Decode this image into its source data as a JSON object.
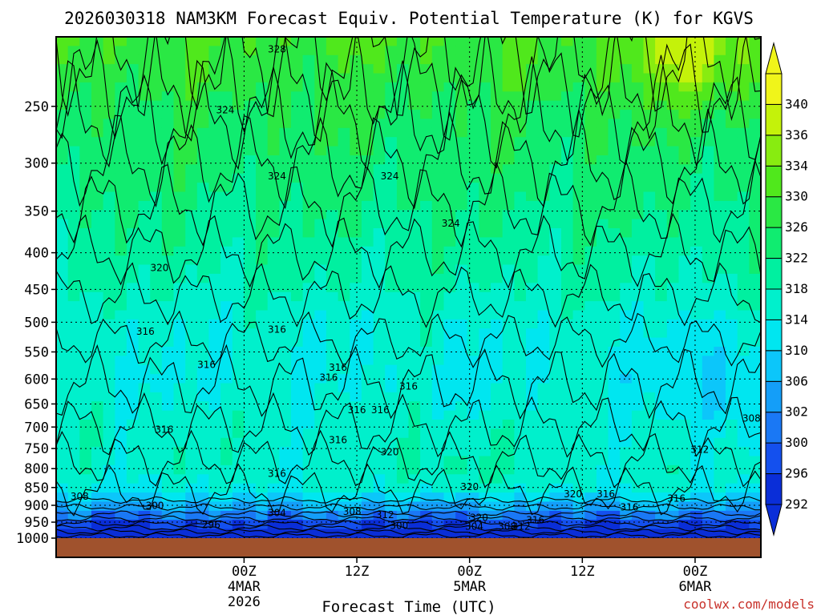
{
  "chart_data": {
    "type": "heatmap",
    "title": "2026030318 NAM3KM Forecast Equiv. Potential Temperature (K) for KGVS",
    "xlabel": "Forecast Time (UTC)",
    "credit": "coolwx.com/models",
    "y_axis": {
      "quantity": "pressure (hPa)",
      "range": [
        1000,
        200
      ],
      "ticks": [
        250,
        300,
        350,
        400,
        450,
        500,
        550,
        600,
        650,
        700,
        750,
        800,
        850,
        900,
        950,
        1000
      ]
    },
    "x_axis": {
      "range_hours_from_init": [
        -14,
        61
      ],
      "ticks": [
        {
          "hour": 6,
          "lines": [
            "00Z",
            "4MAR",
            "2026"
          ]
        },
        {
          "hour": 18,
          "lines": [
            "12Z"
          ]
        },
        {
          "hour": 30,
          "lines": [
            "00Z",
            "5MAR"
          ]
        },
        {
          "hour": 42,
          "lines": [
            "12Z"
          ]
        },
        {
          "hour": 54,
          "lines": [
            "00Z",
            "6MAR"
          ]
        }
      ]
    },
    "grid": true,
    "colorbar": {
      "unit": "K",
      "levels": [
        292,
        296,
        300,
        302,
        306,
        310,
        314,
        318,
        322,
        326,
        330,
        334,
        336,
        340
      ],
      "colors": [
        "#0a2ed8",
        "#1450ee",
        "#1a78f5",
        "#149ef8",
        "#0cc6fa",
        "#00e6f0",
        "#00f0cc",
        "#00f0a0",
        "#10ec70",
        "#2ae844",
        "#50e81c",
        "#88ec10",
        "#c4f20a",
        "#f0f51a"
      ]
    },
    "field_summary": [
      {
        "pressure": 200,
        "theta_e": 330
      },
      {
        "pressure": 250,
        "theta_e": 326
      },
      {
        "pressure": 300,
        "theta_e": 324
      },
      {
        "pressure": 350,
        "theta_e": 322
      },
      {
        "pressure": 400,
        "theta_e": 320
      },
      {
        "pressure": 450,
        "theta_e": 318
      },
      {
        "pressure": 500,
        "theta_e": 315
      },
      {
        "pressure": 600,
        "theta_e": 314
      },
      {
        "pressure": 700,
        "theta_e": 316
      },
      {
        "pressure": 800,
        "theta_e": 316
      },
      {
        "pressure": 850,
        "theta_e": 314
      },
      {
        "pressure": 900,
        "theta_e": 306
      },
      {
        "pressure": 950,
        "theta_e": 298
      },
      {
        "pressure": 980,
        "theta_e": 292
      }
    ],
    "contour_labels": [
      {
        "value": "328",
        "hour": 9.5,
        "pressure": 208
      },
      {
        "value": "324",
        "hour": 4,
        "pressure": 253
      },
      {
        "value": "324",
        "hour": 9.5,
        "pressure": 313
      },
      {
        "value": "324",
        "hour": 21.5,
        "pressure": 313
      },
      {
        "value": "324",
        "hour": 28,
        "pressure": 364
      },
      {
        "value": "320",
        "hour": -3,
        "pressure": 420
      },
      {
        "value": "316",
        "hour": 9.5,
        "pressure": 512
      },
      {
        "value": "316",
        "hour": -4.5,
        "pressure": 515
      },
      {
        "value": "316",
        "hour": 2,
        "pressure": 573
      },
      {
        "value": "316",
        "hour": 16,
        "pressure": 578
      },
      {
        "value": "316",
        "hour": 15,
        "pressure": 597
      },
      {
        "value": "316",
        "hour": 23.5,
        "pressure": 614
      },
      {
        "value": "316",
        "hour": 18,
        "pressure": 663
      },
      {
        "value": "316",
        "hour": 20.5,
        "pressure": 663
      },
      {
        "value": "316",
        "hour": -2.5,
        "pressure": 706
      },
      {
        "value": "316",
        "hour": 16,
        "pressure": 730
      },
      {
        "value": "320",
        "hour": 21.5,
        "pressure": 759
      },
      {
        "value": "316",
        "hour": 9.5,
        "pressure": 813
      },
      {
        "value": "320",
        "hour": 30,
        "pressure": 848
      },
      {
        "value": "320",
        "hour": 41,
        "pressure": 868
      },
      {
        "value": "316",
        "hour": 44.5,
        "pressure": 868
      },
      {
        "value": "316",
        "hour": 52,
        "pressure": 881
      },
      {
        "value": "316",
        "hour": 47,
        "pressure": 906
      },
      {
        "value": "308",
        "hour": -11.5,
        "pressure": 875
      },
      {
        "value": "300",
        "hour": -3.5,
        "pressure": 901
      },
      {
        "value": "304",
        "hour": 9.5,
        "pressure": 922
      },
      {
        "value": "308",
        "hour": 17.5,
        "pressure": 919
      },
      {
        "value": "312",
        "hour": 21,
        "pressure": 928
      },
      {
        "value": "320",
        "hour": 31,
        "pressure": 937
      },
      {
        "value": "296",
        "hour": 2.5,
        "pressure": 958
      },
      {
        "value": "300",
        "hour": 22.5,
        "pressure": 961
      },
      {
        "value": "304",
        "hour": 30.5,
        "pressure": 964
      },
      {
        "value": "308",
        "hour": 34,
        "pressure": 964
      },
      {
        "value": "312",
        "hour": 35.5,
        "pressure": 964
      },
      {
        "value": "316",
        "hour": 37,
        "pressure": 944
      },
      {
        "value": "312",
        "hour": 54.5,
        "pressure": 753
      },
      {
        "value": "308",
        "hour": 60,
        "pressure": 681
      }
    ]
  }
}
